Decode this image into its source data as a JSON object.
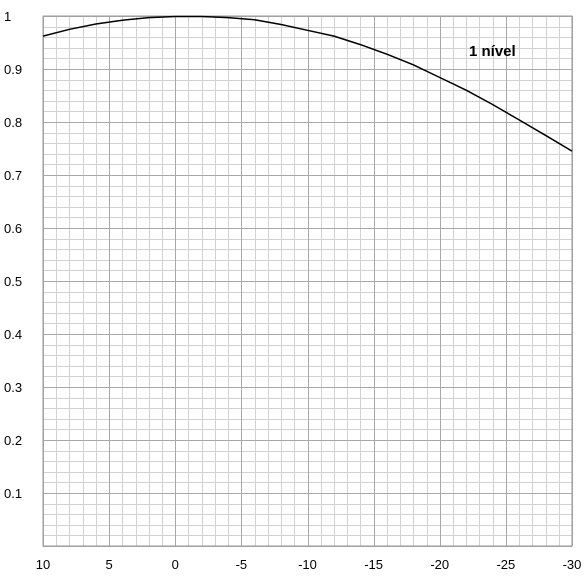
{
  "chart_data": {
    "type": "line",
    "title": "",
    "xlabel": "",
    "ylabel": "",
    "annotation": "1 nível",
    "xlim": [
      10,
      -30
    ],
    "ylim": [
      0,
      1
    ],
    "x_ticks": [
      10,
      5,
      0,
      -5,
      -10,
      -15,
      -20,
      -25,
      -30
    ],
    "y_ticks": [
      0.1,
      0.2,
      0.3,
      0.4,
      0.5,
      0.6,
      0.7,
      0.8,
      0.9,
      1
    ],
    "y_tick_labels": [
      "0.1",
      "0.2",
      "0.3",
      "0.4",
      "0.5",
      "0.6",
      "0.7",
      "0.8",
      "0.9",
      "1"
    ],
    "grid": true,
    "series": [
      {
        "x": [
          10,
          8,
          6,
          4,
          2,
          0,
          -2,
          -4,
          -6,
          -8,
          -10,
          -12,
          -14,
          -16,
          -18,
          -20,
          -22,
          -24,
          -26,
          -28,
          -30
        ],
        "y": [
          0.962,
          0.975,
          0.985,
          0.992,
          0.997,
          0.999,
          0.999,
          0.997,
          0.993,
          0.984,
          0.973,
          0.962,
          0.946,
          0.928,
          0.908,
          0.884,
          0.86,
          0.833,
          0.804,
          0.775,
          0.745
        ],
        "color": "#000000"
      }
    ]
  }
}
